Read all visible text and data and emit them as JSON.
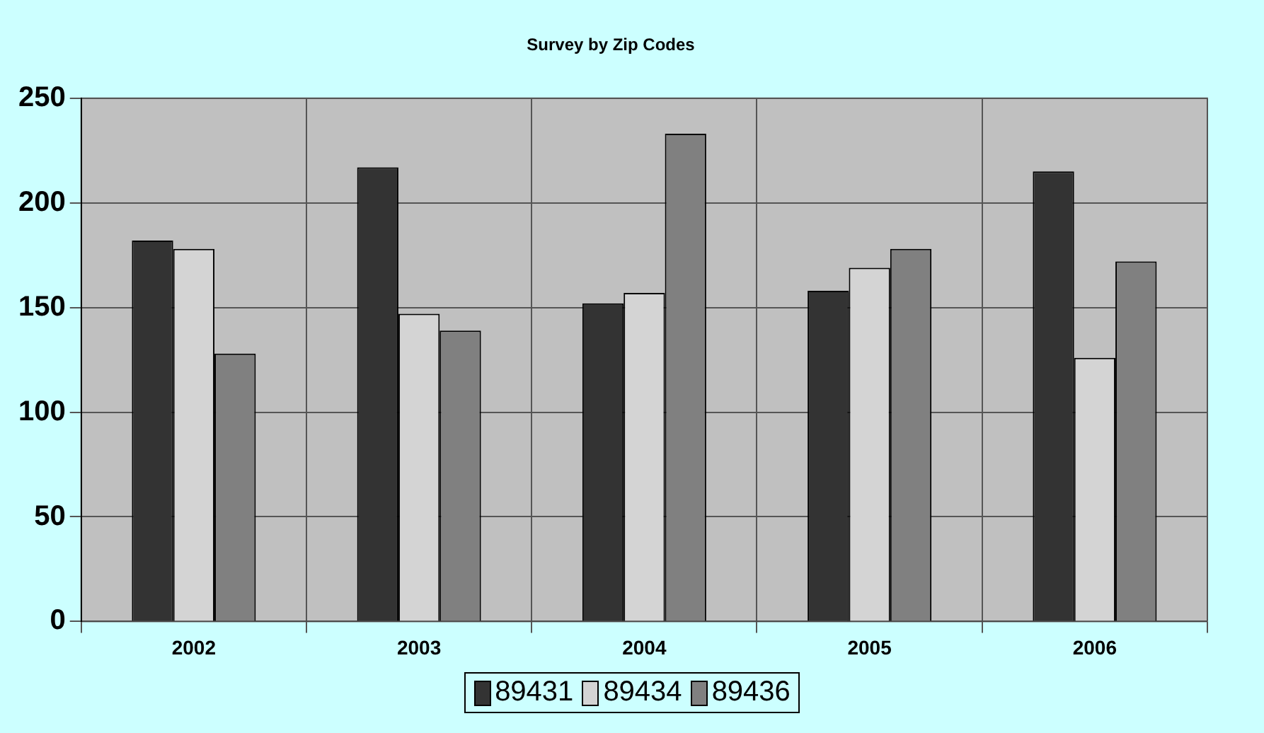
{
  "chart_data": {
    "type": "bar",
    "title": "Survey by Zip Codes",
    "categories": [
      "2002",
      "2003",
      "2004",
      "2005",
      "2006"
    ],
    "series": [
      {
        "name": "89431",
        "color": "#333333",
        "values": [
          182,
          217,
          152,
          158,
          215
        ]
      },
      {
        "name": "89434",
        "color": "#d4d4d4",
        "values": [
          178,
          147,
          157,
          169,
          126
        ]
      },
      {
        "name": "89436",
        "color": "#808080",
        "values": [
          128,
          139,
          233,
          178,
          172
        ]
      }
    ],
    "ylim": [
      0,
      250
    ],
    "yticks": [
      0,
      50,
      100,
      150,
      200,
      250
    ],
    "grid": true,
    "legend": "bottom"
  }
}
